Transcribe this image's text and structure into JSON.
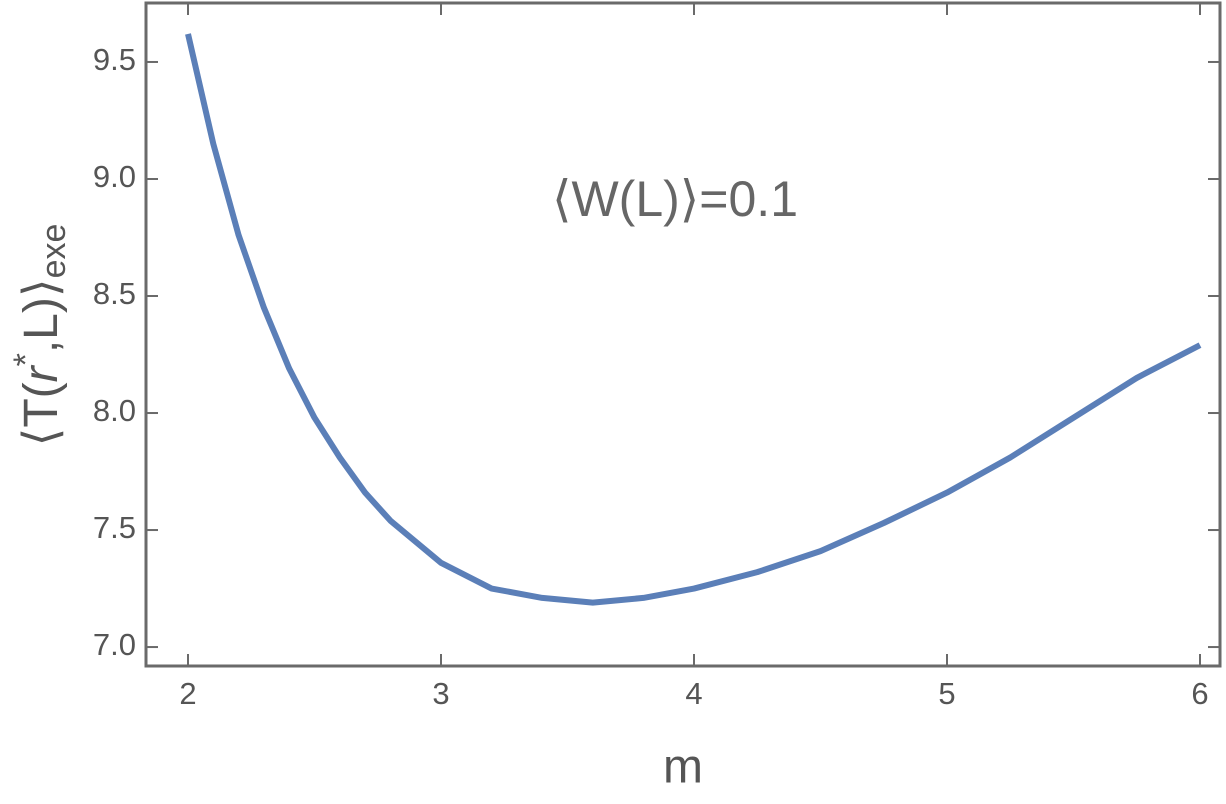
{
  "chart_data": {
    "type": "line",
    "xlabel": "m",
    "ylabel_parts": [
      "⟨T(",
      "r",
      "*",
      ",L)⟩",
      "exe"
    ],
    "annotation": "⟨W(L)⟩=0.1",
    "xlim": [
      1.834,
      6.079
    ],
    "ylim": [
      6.919,
      9.752
    ],
    "xticks": [
      2,
      3,
      4,
      5,
      6
    ],
    "yticks": [
      {
        "value": 7.0,
        "label": "7.0"
      },
      7.5,
      {
        "value": 8.0,
        "label": "8.0"
      },
      8.5,
      {
        "value": 9.0,
        "label": "9.0"
      },
      9.5
    ],
    "grid": false,
    "series": [
      {
        "color": "#5b7fb8",
        "x": [
          2.0,
          2.1,
          2.2,
          2.3,
          2.4,
          2.5,
          2.6,
          2.7,
          2.8,
          3.0,
          3.2,
          3.4,
          3.6,
          3.8,
          4.0,
          4.25,
          4.5,
          4.75,
          5.0,
          5.25,
          5.5,
          5.75,
          6.0
        ],
        "values": [
          9.62,
          9.15,
          8.76,
          8.45,
          8.19,
          7.98,
          7.81,
          7.66,
          7.54,
          7.36,
          7.25,
          7.21,
          7.19,
          7.21,
          7.25,
          7.32,
          7.41,
          7.53,
          7.66,
          7.81,
          7.98,
          8.15,
          8.29
        ]
      }
    ]
  }
}
